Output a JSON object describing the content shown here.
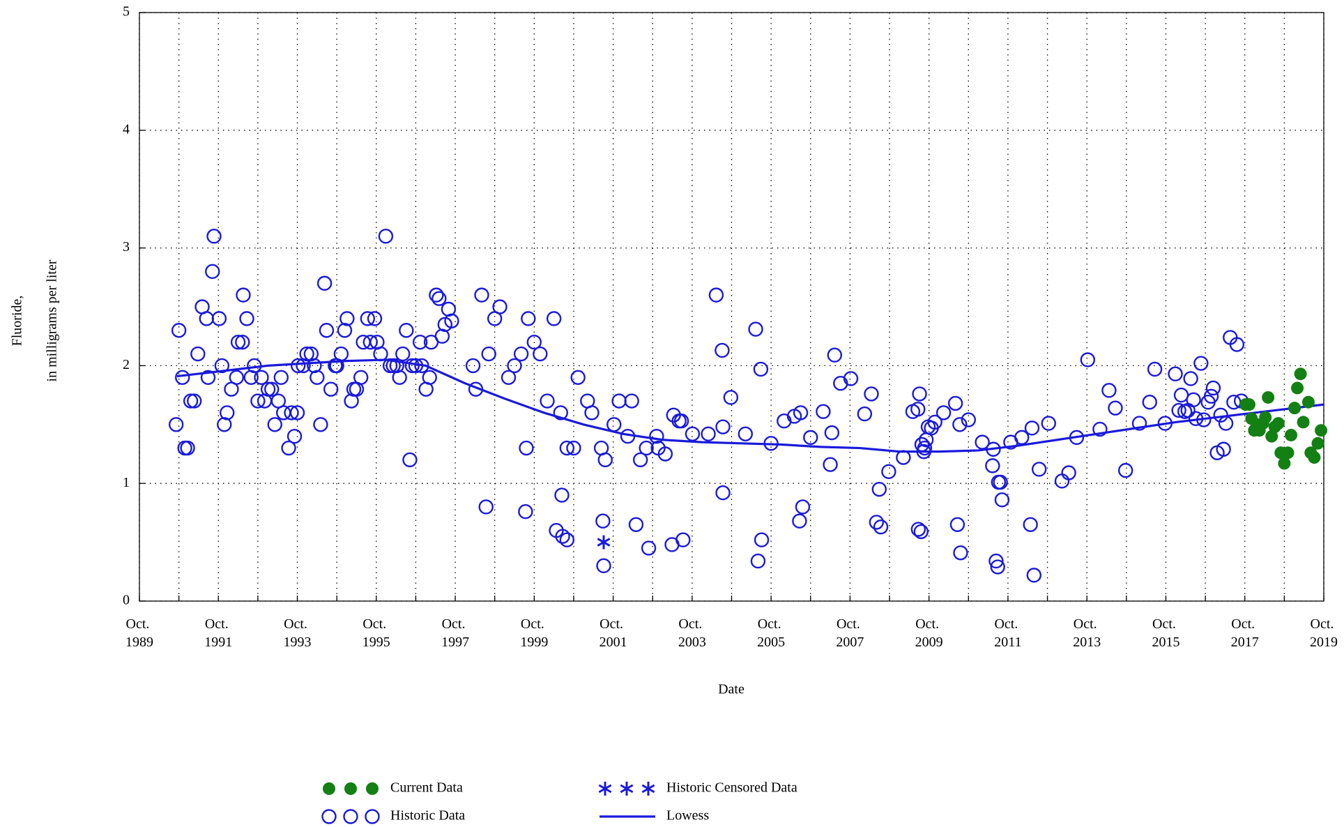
{
  "chart_data": {
    "type": "scatter",
    "x_label": "Date",
    "y_label": [
      "Fluoride,",
      "in milligrams per liter"
    ],
    "xlim": [
      1989.75,
      2019.75
    ],
    "ylim": [
      0,
      5
    ],
    "xticks": [
      {
        "value": 1989.75,
        "label": "Oct. 1989"
      },
      {
        "value": 1991.75,
        "label": "Oct. 1991"
      },
      {
        "value": 1993.75,
        "label": "Oct. 1993"
      },
      {
        "value": 1995.75,
        "label": "Oct. 1995"
      },
      {
        "value": 1997.75,
        "label": "Oct. 1997"
      },
      {
        "value": 1999.75,
        "label": "Oct. 1999"
      },
      {
        "value": 2001.75,
        "label": "Oct. 2001"
      },
      {
        "value": 2003.75,
        "label": "Oct. 2003"
      },
      {
        "value": 2005.75,
        "label": "Oct. 2005"
      },
      {
        "value": 2007.75,
        "label": "Oct. 2007"
      },
      {
        "value": 2009.75,
        "label": "Oct. 2009"
      },
      {
        "value": 2011.75,
        "label": "Oct. 2011"
      },
      {
        "value": 2013.75,
        "label": "Oct. 2013"
      },
      {
        "value": 2015.75,
        "label": "Oct. 2015"
      },
      {
        "value": 2017.75,
        "label": "Oct. 2017"
      },
      {
        "value": 2019.75,
        "label": "Oct. 2019"
      }
    ],
    "xminorticks": [
      1990.75,
      1992.75,
      1994.75,
      1996.75,
      1998.75,
      2000.75,
      2002.75,
      2004.75,
      2006.75,
      2008.75,
      2010.75,
      2012.75,
      2014.75,
      2016.75,
      2018.75
    ],
    "yticks": [
      0,
      1,
      2,
      3,
      4,
      5
    ],
    "grid": true,
    "series": [
      {
        "name": "Current Data",
        "color": "#138013",
        "marker": "filled-circle",
        "x": [
          2017.77,
          2017.86,
          2017.92,
          2017.99,
          2018.05,
          2018.12,
          2018.21,
          2018.27,
          2018.34,
          2018.43,
          2018.51,
          2018.6,
          2018.66,
          2018.75,
          2018.84,
          2018.92,
          2019.01,
          2019.08,
          2019.16,
          2019.23,
          2019.36,
          2019.42,
          2019.51,
          2019.6,
          2019.68
        ],
        "values": [
          1.67,
          1.67,
          1.55,
          1.45,
          1.5,
          1.45,
          1.51,
          1.56,
          1.73,
          1.4,
          1.48,
          1.51,
          1.26,
          1.17,
          1.26,
          1.41,
          1.64,
          1.81,
          1.93,
          1.52,
          1.69,
          1.26,
          1.22,
          1.34,
          1.45
        ]
      },
      {
        "name": "Historic Data",
        "color": "#1a1adb",
        "marker": "open-circle",
        "x": [
          1990.68,
          1990.75,
          1990.84,
          1990.9,
          1990.97,
          1991.05,
          1991.14,
          1991.23,
          1991.34,
          1991.45,
          1991.49,
          1991.6,
          1991.64,
          1991.77,
          1991.84,
          1991.9,
          1991.97,
          1992.08,
          1992.21,
          1992.25,
          1992.36,
          1992.38,
          1992.47,
          1992.58,
          1992.66,
          1992.75,
          1992.84,
          1992.92,
          1993.01,
          1993.1,
          1993.18,
          1993.27,
          1993.34,
          1993.4,
          1993.53,
          1993.6,
          1993.68,
          1993.75,
          1993.77,
          1993.9,
          1993.99,
          1994.1,
          1994.18,
          1994.25,
          1994.34,
          1994.44,
          1994.49,
          1994.6,
          1994.71,
          1994.75,
          1994.86,
          1994.95,
          1995.01,
          1995.12,
          1995.18,
          1995.25,
          1995.36,
          1995.42,
          1995.53,
          1995.6,
          1995.71,
          1995.77,
          1995.86,
          1995.99,
          1996.1,
          1996.18,
          1996.27,
          1996.34,
          1996.42,
          1996.51,
          1996.6,
          1996.66,
          1996.75,
          1996.86,
          1996.9,
          1997.01,
          1997.1,
          1997.14,
          1997.27,
          1997.34,
          1997.42,
          1997.49,
          1997.58,
          1997.66,
          1998.2,
          1998.27,
          1998.42,
          1998.53,
          1998.6,
          1998.75,
          1998.88,
          1999.1,
          1999.25,
          1999.42,
          1999.53,
          1999.55,
          1999.6,
          1999.75,
          1999.9,
          2000.08,
          2000.25,
          2000.31,
          2000.42,
          2000.45,
          2000.47,
          2000.58,
          2000.58,
          2000.75,
          2000.86,
          2001.1,
          2001.21,
          2001.45,
          2001.49,
          2001.51,
          2001.55,
          2001.77,
          2001.9,
          2002.12,
          2002.22,
          2002.33,
          2002.44,
          2002.59,
          2002.65,
          2002.85,
          2002.89,
          2003.07,
          2003.24,
          2003.28,
          2003.42,
          2003.48,
          2003.52,
          2003.76,
          2004.16,
          2004.36,
          2004.51,
          2004.53,
          2004.53,
          2004.73,
          2005.1,
          2005.36,
          2005.42,
          2005.49,
          2005.51,
          2005.75,
          2006.08,
          2006.34,
          2006.47,
          2006.5,
          2006.55,
          2006.75,
          2007.07,
          2007.25,
          2007.29,
          2007.36,
          2007.51,
          2007.77,
          2008.12,
          2008.29,
          2008.42,
          2008.49,
          2008.53,
          2008.73,
          2009.1,
          2009.34,
          2009.47,
          2009.48,
          2009.51,
          2009.55,
          2009.57,
          2009.62,
          2009.64,
          2009.68,
          2009.73,
          2009.81,
          2009.9,
          2010.12,
          2010.42,
          2010.47,
          2010.53,
          2010.55,
          2010.75,
          2011.1,
          2011.36,
          2011.38,
          2011.45,
          2011.49,
          2011.51,
          2011.56,
          2011.6,
          2011.82,
          2012.1,
          2012.32,
          2012.36,
          2012.41,
          2012.54,
          2012.78,
          2013.12,
          2013.29,
          2013.49,
          2013.77,
          2014.08,
          2014.31,
          2014.47,
          2014.73,
          2015.08,
          2015.34,
          2015.47,
          2015.73,
          2015.99,
          2016.08,
          2016.14,
          2016.23,
          2016.31,
          2016.38,
          2016.45,
          2016.51,
          2016.64,
          2016.71,
          2016.82,
          2016.9,
          2016.95,
          2017.05,
          2017.14,
          2017.21,
          2017.27,
          2017.38,
          2017.47,
          2017.55,
          2017.66
        ],
        "values": [
          1.5,
          2.3,
          1.9,
          1.3,
          1.3,
          1.7,
          1.7,
          2.1,
          2.5,
          2.4,
          1.9,
          2.8,
          3.1,
          2.4,
          2.0,
          1.5,
          1.6,
          1.8,
          1.9,
          2.2,
          2.2,
          2.6,
          2.4,
          1.9,
          2.0,
          1.7,
          1.9,
          1.7,
          1.8,
          1.8,
          1.5,
          1.7,
          1.9,
          1.6,
          1.3,
          1.6,
          1.4,
          1.6,
          2.0,
          2.0,
          2.1,
          2.1,
          2.0,
          1.9,
          1.5,
          2.7,
          2.3,
          1.8,
          2.0,
          2.0,
          2.1,
          2.3,
          2.4,
          1.7,
          1.8,
          1.8,
          1.9,
          2.2,
          2.4,
          2.2,
          2.4,
          2.2,
          2.1,
          3.1,
          2.0,
          2.0,
          2.0,
          1.9,
          2.1,
          2.3,
          1.2,
          2.0,
          2.0,
          2.2,
          2.0,
          1.8,
          1.9,
          2.2,
          2.6,
          2.57,
          2.25,
          2.35,
          2.48,
          2.38,
          2.0,
          1.8,
          2.6,
          0.8,
          2.1,
          2.4,
          2.5,
          1.9,
          2.0,
          2.1,
          0.76,
          1.3,
          2.4,
          2.2,
          2.1,
          1.7,
          2.4,
          0.6,
          1.6,
          0.9,
          0.55,
          1.3,
          0.52,
          1.3,
          1.9,
          1.7,
          1.6,
          1.3,
          0.68,
          0.3,
          1.2,
          1.5,
          1.7,
          1.4,
          1.7,
          0.65,
          1.2,
          1.3,
          0.45,
          1.4,
          1.3,
          1.25,
          0.48,
          1.58,
          1.53,
          1.53,
          0.52,
          1.42,
          1.42,
          2.6,
          2.13,
          1.48,
          0.92,
          1.73,
          1.42,
          2.31,
          0.34,
          1.97,
          0.52,
          1.34,
          1.53,
          1.57,
          0.68,
          1.6,
          0.8,
          1.39,
          1.61,
          1.16,
          1.43,
          2.09,
          1.85,
          1.89,
          1.59,
          1.76,
          0.67,
          0.95,
          0.63,
          1.1,
          1.22,
          1.61,
          1.63,
          0.61,
          1.76,
          0.59,
          1.33,
          1.27,
          1.3,
          1.37,
          1.48,
          1.47,
          1.52,
          1.6,
          1.68,
          0.65,
          1.5,
          0.41,
          1.54,
          1.35,
          1.15,
          1.29,
          0.34,
          0.29,
          1.01,
          1.01,
          0.86,
          1.35,
          1.39,
          0.65,
          1.47,
          0.22,
          1.12,
          1.51,
          1.02,
          1.09,
          1.39,
          2.05,
          1.46,
          1.79,
          1.64,
          1.11,
          1.51,
          1.69,
          1.97,
          1.51,
          1.93,
          1.62,
          1.75,
          1.61,
          1.62,
          1.89,
          1.71,
          1.55,
          2.02,
          1.54,
          1.69,
          1.74,
          1.81,
          1.26,
          1.58,
          1.29,
          1.51,
          2.24,
          1.69,
          2.18,
          1.7
        ]
      },
      {
        "name": "Historic Censored Data",
        "color": "#1a1adb",
        "marker": "star",
        "x": [
          2001.51
        ],
        "values": [
          0.5
        ]
      },
      {
        "name": "Lowess",
        "color": "#1a1adb",
        "marker": "line",
        "x": [
          1990.7,
          1992,
          1993,
          1994,
          1995,
          1996,
          1997,
          1998,
          1999,
          2000,
          2001,
          2002,
          2003,
          2004,
          2005,
          2006,
          2007,
          2008,
          2009,
          2010,
          2011,
          2012,
          2013,
          2014,
          2015,
          2016,
          2017,
          2018,
          2019,
          2019.75
        ],
        "values": [
          1.91,
          1.96,
          2.0,
          2.02,
          2.04,
          2.05,
          2.0,
          1.85,
          1.72,
          1.6,
          1.5,
          1.42,
          1.37,
          1.35,
          1.34,
          1.33,
          1.31,
          1.3,
          1.27,
          1.27,
          1.28,
          1.32,
          1.37,
          1.42,
          1.47,
          1.52,
          1.56,
          1.6,
          1.64,
          1.67
        ]
      }
    ]
  }
}
